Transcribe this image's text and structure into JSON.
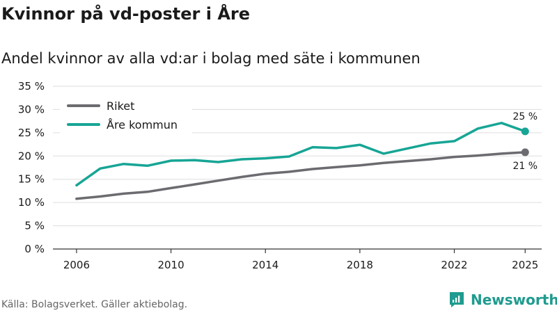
{
  "header": {
    "title": "Kvinnor på vd-poster i Åre",
    "subtitle": "Andel kvinnor av alla vd:ar i bolag med säte i kommunen"
  },
  "footer": {
    "source": "Källa: Bolagsverket. Gäller aktiebolag.",
    "brand": "Newsworthy"
  },
  "colors": {
    "riket": "#6b6b70",
    "are": "#17a595",
    "grid": "#dddddd",
    "axis": "#333333"
  },
  "chart_data": {
    "type": "line",
    "title": "Kvinnor på vd-poster i Åre",
    "subtitle": "Andel kvinnor av alla vd:ar i bolag med säte i kommunen",
    "xlabel": "",
    "ylabel": "",
    "x": [
      2006,
      2007,
      2008,
      2009,
      2010,
      2011,
      2012,
      2013,
      2014,
      2015,
      2016,
      2017,
      2018,
      2019,
      2020,
      2021,
      2022,
      2023,
      2024,
      2025
    ],
    "xticks": [
      2006,
      2010,
      2014,
      2018,
      2022,
      2025
    ],
    "xlim": [
      2005.0,
      2025.7
    ],
    "ylim": [
      0,
      35
    ],
    "yticks": [
      0,
      5,
      10,
      15,
      20,
      25,
      30,
      35
    ],
    "ytick_labels": [
      "0 %",
      "5 %",
      "10 %",
      "15 %",
      "20 %",
      "25 %",
      "30 %",
      "35 %"
    ],
    "grid": true,
    "legend_position": "top-left",
    "series": [
      {
        "name": "Riket",
        "color": "#6b6b70",
        "values": [
          10.8,
          11.3,
          11.9,
          12.3,
          13.1,
          13.9,
          14.7,
          15.5,
          16.2,
          16.6,
          17.2,
          17.6,
          18.0,
          18.5,
          18.9,
          19.3,
          19.8,
          20.1,
          20.5,
          20.8
        ],
        "end_label": "21 %"
      },
      {
        "name": "Åre kommun",
        "color": "#17a595",
        "values": [
          13.7,
          17.3,
          18.3,
          17.9,
          19.0,
          19.1,
          18.7,
          19.3,
          19.5,
          19.9,
          21.9,
          21.7,
          22.4,
          20.5,
          21.6,
          22.7,
          23.2,
          25.9,
          27.1,
          25.3
        ],
        "end_label": "25 %"
      }
    ]
  }
}
